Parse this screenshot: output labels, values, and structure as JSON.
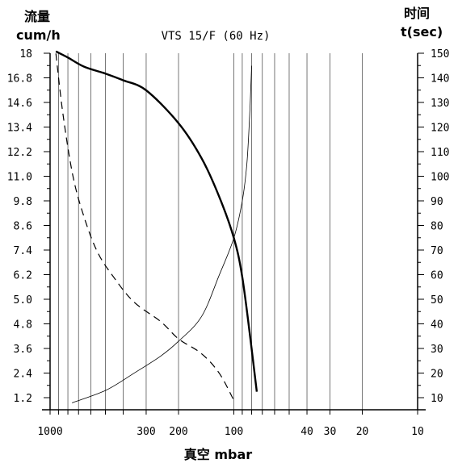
{
  "chart_data": {
    "type": "line",
    "title": "VTS 15/F (60 Hz)",
    "xlabel": "真空 mbar",
    "y_left_label": {
      "line1": "流量",
      "line2": "cum/h"
    },
    "y_right_label": {
      "line1": "时间",
      "line2": "t(sec)"
    },
    "x_scale": "log-reversed",
    "xlim": [
      1000,
      10
    ],
    "x_tick_labels": [
      {
        "value": 1000,
        "label": "1000"
      },
      {
        "value": 300,
        "label": "300"
      },
      {
        "value": 200,
        "label": "200"
      },
      {
        "value": 100,
        "label": "100"
      },
      {
        "value": 40,
        "label": "40"
      },
      {
        "value": 30,
        "label": "30"
      },
      {
        "value": 20,
        "label": "20"
      },
      {
        "value": 10,
        "label": "10"
      }
    ],
    "x_gridlines": [
      1000,
      900,
      800,
      700,
      600,
      500,
      400,
      300,
      200,
      100,
      90,
      80,
      70,
      60,
      50,
      40,
      30,
      20,
      10
    ],
    "y_left_ticks": [
      "18",
      "16.8",
      "14.6",
      "13.4",
      "12.2",
      "11.0",
      "9.8",
      "8.6",
      "7.4",
      "6.2",
      "5.0",
      "4.8",
      "3.6",
      "2.4",
      "1.2"
    ],
    "y_right_ticks": [
      "150",
      "140",
      "130",
      "120",
      "110",
      "100",
      "90",
      "80",
      "70",
      "60",
      "50",
      "40",
      "30",
      "20",
      "10"
    ],
    "grid": true,
    "series": [
      {
        "style": "thick-solid",
        "axis": "left",
        "x": [
          930,
          800,
          650,
          500,
          400,
          300,
          200,
          150,
          120,
          100,
          90,
          80,
          75
        ],
        "y": [
          17.5,
          17.2,
          16.7,
          16.1,
          15.5,
          14.6,
          13.0,
          11.3,
          9.4,
          7.4,
          5.5,
          3.0,
          0.9
        ]
      },
      {
        "style": "dashed",
        "axis": "right",
        "x": [
          930,
          850,
          750,
          650,
          550,
          450,
          350,
          250,
          200,
          150,
          120,
          100
        ],
        "y": [
          145,
          120,
          95,
          78,
          64,
          54,
          44,
          36,
          29,
          23,
          15,
          4
        ]
      },
      {
        "style": "thin-solid",
        "axis": "right",
        "x": [
          760,
          500,
          350,
          250,
          200,
          150,
          120,
          100,
          90,
          85,
          82,
          80
        ],
        "y": [
          3,
          8,
          15,
          22,
          28,
          38,
          55,
          70,
          85,
          100,
          120,
          140
        ]
      }
    ]
  }
}
